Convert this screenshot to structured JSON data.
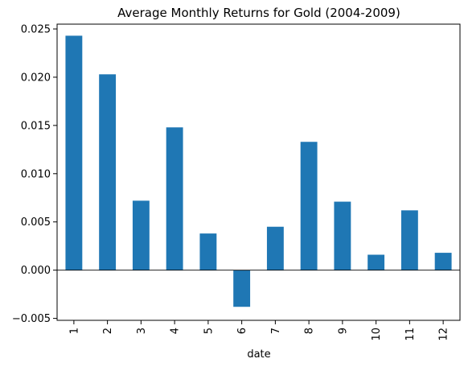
{
  "chart_data": {
    "type": "bar",
    "title": "Average Monthly Returns for Gold (2004-2009)",
    "xlabel": "date",
    "ylabel": "",
    "categories": [
      "1",
      "2",
      "3",
      "4",
      "5",
      "6",
      "7",
      "8",
      "9",
      "10",
      "11",
      "12"
    ],
    "values": [
      0.0243,
      0.0203,
      0.0072,
      0.0148,
      0.0038,
      -0.0038,
      0.0045,
      0.0133,
      0.0071,
      0.0016,
      0.0062,
      0.0018
    ],
    "ylim": [
      -0.0052,
      0.0255
    ],
    "yticks": [
      -0.005,
      0.0,
      0.005,
      0.01,
      0.015,
      0.02,
      0.025
    ],
    "ytick_labels": [
      "−0.005",
      "0.000",
      "0.005",
      "0.010",
      "0.015",
      "0.020",
      "0.025"
    ],
    "bar_color": "#1f77b4",
    "zero_line": true,
    "grid": false,
    "legend": "none"
  }
}
